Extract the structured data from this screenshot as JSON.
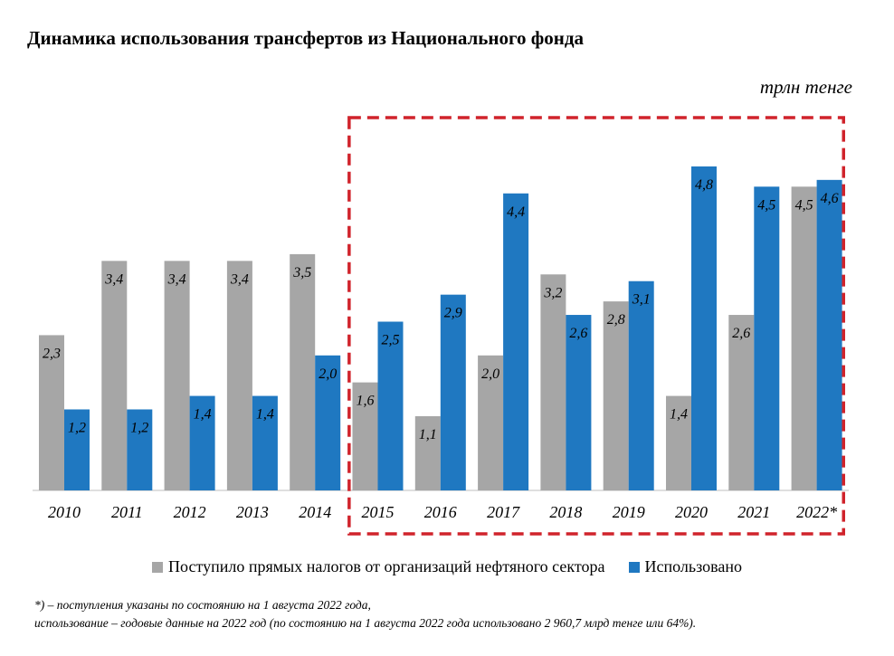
{
  "title": "Динамика использования трансфертов из Национального фонда",
  "unit": "трлн тенге",
  "chart_data": {
    "type": "bar",
    "categories": [
      "2010",
      "2011",
      "2012",
      "2013",
      "2014",
      "2015",
      "2016",
      "2017",
      "2018",
      "2019",
      "2020",
      "2021",
      "2022*"
    ],
    "series": [
      {
        "name": "Поступило прямых налогов от организаций нефтяного сектора",
        "color": "#a6a6a6",
        "values": [
          2.3,
          3.4,
          3.4,
          3.4,
          3.5,
          1.6,
          1.1,
          2.0,
          3.2,
          2.8,
          1.4,
          2.6,
          4.5
        ],
        "labels": [
          "2,3",
          "3,4",
          "3,4",
          "3,4",
          "3,5",
          "1,6",
          "1,1",
          "2,0",
          "3,2",
          "2,8",
          "1,4",
          "2,6",
          "4,5"
        ]
      },
      {
        "name": "Использовано",
        "color": "#1f78c1",
        "values": [
          1.2,
          1.2,
          1.4,
          1.4,
          2.0,
          2.5,
          2.9,
          4.4,
          2.6,
          3.1,
          4.8,
          4.5,
          4.6
        ],
        "labels": [
          "1,2",
          "1,2",
          "1,4",
          "1,4",
          "2,0",
          "2,5",
          "2,9",
          "4,4",
          "2,6",
          "3,1",
          "4,8",
          "4,5",
          "4,6"
        ]
      }
    ],
    "ylim": [
      0,
      5
    ],
    "grid": false,
    "legend_position": "bottom",
    "highlight": {
      "from": "2015",
      "to": "2022*",
      "style": "red dashed rectangle",
      "color": "#d0232b"
    }
  },
  "legend": {
    "item1": "Поступило прямых налогов от организаций нефтяного сектора",
    "item2": "Использовано"
  },
  "footnote": {
    "line1": "*) – поступления указаны по состоянию на 1 августа 2022 года,",
    "line2": "использование – годовые данные на 2022 год (по состоянию на 1 августа 2022 года использовано 2 960,7 млрд тенге или 64%)."
  }
}
